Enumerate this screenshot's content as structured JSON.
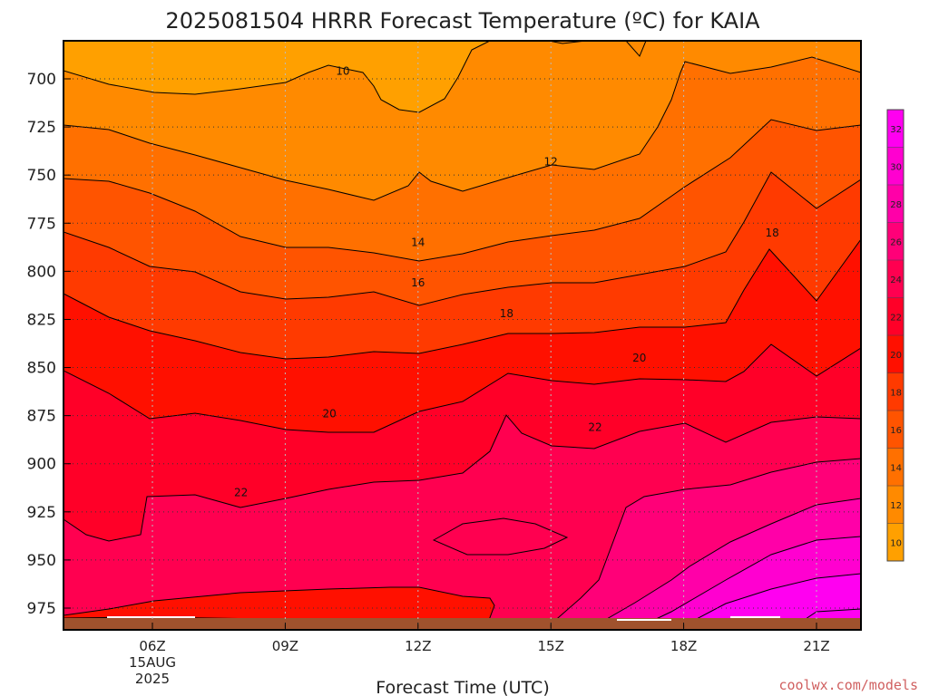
{
  "chart_data": {
    "type": "contour",
    "title": "2025081504 HRRR Forecast Temperature (ºC) for KAIA",
    "xlabel": "Forecast Time (UTC)",
    "ylabel": "",
    "x_ticks": [
      "06Z",
      "09Z",
      "12Z",
      "15Z",
      "18Z",
      "21Z"
    ],
    "x_subticks": [
      "15AUG",
      "2025"
    ],
    "y_ticks": [
      700,
      725,
      750,
      775,
      800,
      825,
      850,
      875,
      900,
      925,
      950,
      975
    ],
    "y_inverted": true,
    "grid": true,
    "colorbar": {
      "ticks": [
        10,
        12,
        14,
        16,
        18,
        20,
        22,
        24,
        26,
        28,
        30,
        32
      ],
      "colors": [
        "#ffa000",
        "#ff8a00",
        "#ff7000",
        "#ff5400",
        "#ff3a00",
        "#ff1000",
        "#ff0028",
        "#ff0050",
        "#ff0078",
        "#ff00a8",
        "#ff00d0",
        "#ff00f0"
      ]
    },
    "contour_labels": [
      {
        "value": "10",
        "time": "09Z+",
        "pressure": 696
      },
      {
        "value": "12",
        "time": "15Z",
        "pressure": 743
      },
      {
        "value": "14",
        "time": "12Z",
        "pressure": 785
      },
      {
        "value": "16",
        "time": "12Z",
        "pressure": 806
      },
      {
        "value": "18",
        "time": "14Z",
        "pressure": 822
      },
      {
        "value": "20",
        "time": "17Z",
        "pressure": 845
      },
      {
        "value": "18",
        "time": "20Z",
        "pressure": 780
      },
      {
        "value": "20",
        "time": "10Z",
        "pressure": 874
      },
      {
        "value": "22",
        "time": "16Z",
        "pressure": 881
      },
      {
        "value": "22",
        "time": "08Z",
        "pressure": 915
      }
    ],
    "watermark": "coolwx.com/models"
  }
}
